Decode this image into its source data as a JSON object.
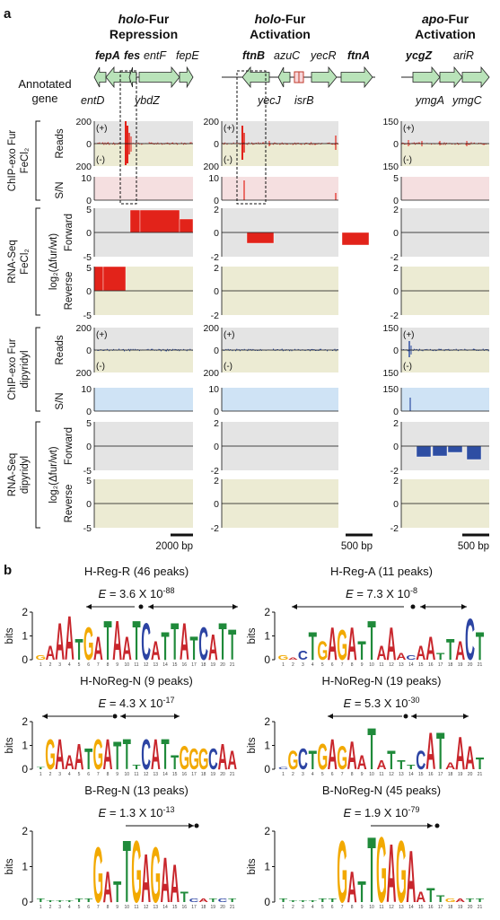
{
  "panel_a": {
    "label": "a",
    "columns": [
      {
        "line1": "holo",
        "line2": "-Fur",
        "line3": "Repression",
        "genes_top": [
          {
            "text": "fepA",
            "bold": true
          },
          {
            "text": "fes",
            "bold": true
          },
          {
            "text": "entF",
            "bold": false
          },
          {
            "text": "fepE",
            "bold": false
          }
        ],
        "genes_bottom": [
          {
            "text": "entD",
            "bold": false
          },
          {
            "text": "ybdZ",
            "bold": false
          }
        ],
        "scale": "2000 bp"
      },
      {
        "line1": "holo",
        "line2": "-Fur",
        "line3": "Activation",
        "genes_top": [
          {
            "text": "ftnB",
            "bold": true
          },
          {
            "text": "azuC",
            "bold": false
          },
          {
            "text": "yecR",
            "bold": false
          },
          {
            "text": "ftnA",
            "bold": true
          }
        ],
        "genes_bottom": [
          {
            "text": "yecJ",
            "bold": false
          },
          {
            "text": "isrB",
            "bold": false
          }
        ],
        "scale": "500 bp"
      },
      {
        "line1": "apo",
        "line2": "-Fur",
        "line3": "Activation",
        "genes_top": [
          {
            "text": "ycgZ",
            "bold": true
          },
          {
            "text": "ariR",
            "bold": false
          }
        ],
        "genes_bottom": [
          {
            "text": "ymgA",
            "bold": false
          },
          {
            "text": "ymgC",
            "bold": false
          }
        ],
        "scale": "500 bp"
      }
    ],
    "annotated_gene_label": [
      "Annotated",
      "gene"
    ],
    "row_groups": [
      {
        "lines": [
          "ChIP-exo Fur",
          "FeCl₂"
        ]
      },
      {
        "lines": [
          "RNA-Seq",
          "FeCl₂"
        ]
      },
      {
        "lines": [
          "ChIP-exo Fur",
          "dipyridyl"
        ]
      },
      {
        "lines": [
          "RNA-Seq",
          "dipyridyl"
        ]
      }
    ],
    "track_labels": {
      "reads": "Reads",
      "sn": "S/N",
      "log2": "log₂(Δfur/wt)",
      "forward": "Forward",
      "reverse": "Reverse",
      "plus": "(+)",
      "minus": "(-)"
    },
    "reads_ticks": [
      [
        "200",
        "0",
        "200"
      ],
      [
        "200",
        "0",
        "200"
      ],
      [
        "150",
        "0",
        "150"
      ]
    ],
    "sn_ticks": [
      [
        "10",
        "0"
      ],
      [
        "10",
        "0"
      ],
      [
        "5",
        "0"
      ]
    ],
    "rna_fwd_ticks": [
      [
        "5",
        "0",
        "-5"
      ],
      [
        "2",
        "0",
        "-2"
      ],
      [
        "2",
        "0",
        "-2"
      ]
    ],
    "rna_rev_ticks": [
      [
        "5",
        "0",
        "-5"
      ],
      [
        "2",
        "0",
        "-2"
      ],
      [
        "2",
        "0",
        "-2"
      ]
    ],
    "reads_ticks_dip": [
      [
        "200",
        "0",
        "200"
      ],
      [
        "200",
        "0",
        "200"
      ],
      [
        "150",
        "0",
        "150"
      ]
    ],
    "sn_ticks_dip": [
      [
        "10",
        "0"
      ],
      [
        "10",
        "0"
      ],
      [
        "150",
        "0"
      ]
    ],
    "colors": {
      "red": "#e2231a",
      "blue": "#2e4ea3",
      "grey_bg": "#e4e4e4",
      "olive_bg": "#ecebd3",
      "pink_bg": "#f5dfe0",
      "lightblue_bg": "#cfe3f5",
      "gene_green": "#b9e3b9"
    }
  },
  "panel_b": {
    "label": "b",
    "motifs": [
      {
        "name": "H-Reg-R (46 peaks)",
        "e_mant": "3.6",
        "e_exp": "-88",
        "seq": "GAAATGATAATCATTATCATT"
      },
      {
        "name": "H-Reg-A (11 peaks)",
        "e_mant": "7.3",
        "e_exp": "-8",
        "seq": "GACTGAGATTAAACAATTACT"
      },
      {
        "name": "H-NoReg-N (9 peaks)",
        "e_mant": "4.3",
        "e_exp": "-17",
        "seq": "TGAAATGATTTCATTGGGCAA"
      },
      {
        "name": "H-NoReg-N (19 peaks)",
        "e_mant": "5.3",
        "e_exp": "-30",
        "seq": "CGCTGAGAATATTTCATAAAT"
      },
      {
        "name": "B-Reg-N (13 peaks)",
        "e_mant": "1.3",
        "e_exp": "-13",
        "seq": "TTTTTTGATTGAGAATCATCT"
      },
      {
        "name": "B-NoReg-N (45 peaks)",
        "e_mant": "1.9",
        "e_exp": "-79",
        "seq": "TTTTTTGATTGAGAATTGATT"
      }
    ],
    "e_prefix": "E",
    "e_eq": " = ",
    "e_times": " X 10",
    "ylabel": "bits",
    "yticks": [
      "2",
      "1",
      "0"
    ]
  }
}
